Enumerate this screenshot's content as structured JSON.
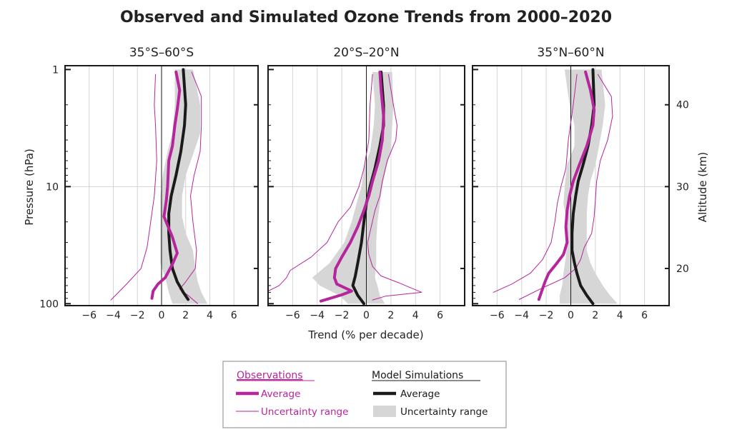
{
  "chart_data": {
    "type": "line",
    "title": "Observed and Simulated Ozone Trends from 2000–2020",
    "xlabel": "Trend (% per decade)",
    "ylabel_left": "Pressure  (hPa)",
    "ylabel_right": "Altitude  (km)",
    "x_ticks": [
      -6,
      -4,
      -2,
      0,
      2,
      4,
      6
    ],
    "x_tick_labels": [
      "−6",
      "−4",
      "−2",
      "0",
      "2",
      "4",
      "6"
    ],
    "xlim": [
      -8,
      8
    ],
    "y_scale": "log",
    "ylim": [
      100,
      1
    ],
    "y_ticks": [
      1,
      10,
      100
    ],
    "y_tick_labels": [
      "1",
      "10",
      "100"
    ],
    "alt_ticks": [
      {
        "p": 2,
        "label": "40"
      },
      {
        "p": 10,
        "label": "30"
      },
      {
        "p": 50,
        "label": "20"
      }
    ],
    "grid": true,
    "panels": [
      {
        "title": "35°S–60°S",
        "obs_avg": [
          [
            1.2,
            1.05
          ],
          [
            1.5,
            1.5
          ],
          [
            1.3,
            2.2
          ],
          [
            1.1,
            3
          ],
          [
            0.9,
            4.5
          ],
          [
            0.6,
            6
          ],
          [
            0.5,
            10
          ],
          [
            0.4,
            13
          ],
          [
            0.2,
            18
          ],
          [
            0.9,
            27
          ],
          [
            1.3,
            37
          ],
          [
            0.9,
            46
          ],
          [
            0.3,
            60
          ],
          [
            -0.3,
            68
          ],
          [
            -0.7,
            78
          ],
          [
            -0.8,
            90
          ]
        ],
        "obs_lower": [
          [
            -0.5,
            1.1
          ],
          [
            -0.6,
            2
          ],
          [
            -0.5,
            3
          ],
          [
            -0.4,
            6
          ],
          [
            -0.6,
            12
          ],
          [
            -0.9,
            20
          ],
          [
            -1.2,
            33
          ],
          [
            -1.7,
            50
          ],
          [
            -2.9,
            68
          ],
          [
            -4.2,
            93
          ]
        ],
        "obs_upper": [
          [
            2.5,
            1.05
          ],
          [
            3.3,
            1.7
          ],
          [
            3.3,
            3
          ],
          [
            3.2,
            5
          ],
          [
            2.7,
            8
          ],
          [
            2.4,
            12
          ],
          [
            2.6,
            20
          ],
          [
            2.9,
            35
          ],
          [
            2.8,
            50
          ],
          [
            2.0,
            65
          ],
          [
            1.5,
            75
          ],
          [
            2.2,
            85
          ],
          [
            3.0,
            100
          ]
        ],
        "model_avg": [
          [
            1.8,
            1.0
          ],
          [
            2.0,
            2
          ],
          [
            1.9,
            3
          ],
          [
            1.6,
            5
          ],
          [
            1.2,
            8
          ],
          [
            0.8,
            12
          ],
          [
            0.6,
            17
          ],
          [
            0.6,
            25
          ],
          [
            0.7,
            35
          ],
          [
            0.9,
            50
          ],
          [
            1.3,
            65
          ],
          [
            1.8,
            80
          ],
          [
            2.2,
            92
          ]
        ],
        "model_lower": [
          [
            1.1,
            1.0
          ],
          [
            1.1,
            2
          ],
          [
            0.9,
            3.5
          ],
          [
            0.5,
            5
          ],
          [
            0.1,
            8
          ],
          [
            -0.1,
            12
          ],
          [
            -0.1,
            20
          ],
          [
            -0.1,
            30
          ],
          [
            -0.1,
            45
          ],
          [
            0.3,
            60
          ],
          [
            0.6,
            80
          ],
          [
            0.9,
            100
          ]
        ],
        "model_upper": [
          [
            2.6,
            1.0
          ],
          [
            3.2,
            2
          ],
          [
            3.2,
            3.5
          ],
          [
            2.7,
            5
          ],
          [
            2.0,
            8
          ],
          [
            1.7,
            12
          ],
          [
            1.7,
            18
          ],
          [
            2.0,
            25
          ],
          [
            2.6,
            35
          ],
          [
            2.8,
            50
          ],
          [
            3.0,
            65
          ],
          [
            3.3,
            80
          ],
          [
            3.8,
            100
          ]
        ]
      },
      {
        "title": "20°S–20°N",
        "obs_avg": [
          [
            1.1,
            1.05
          ],
          [
            1.2,
            1.5
          ],
          [
            1.4,
            2.5
          ],
          [
            1.3,
            4
          ],
          [
            1.0,
            6
          ],
          [
            0.5,
            9
          ],
          [
            0.2,
            12
          ],
          [
            -0.2,
            16
          ],
          [
            -0.7,
            22
          ],
          [
            -1.3,
            30
          ],
          [
            -2.0,
            40
          ],
          [
            -2.5,
            50
          ],
          [
            -2.6,
            60
          ],
          [
            -2.4,
            68
          ],
          [
            -1.2,
            78
          ],
          [
            -2.0,
            84
          ],
          [
            -3.7,
            95
          ]
        ],
        "obs_lower": [
          [
            0.5,
            1.1
          ],
          [
            0.3,
            2
          ],
          [
            0.2,
            4
          ],
          [
            -0.2,
            7
          ],
          [
            -0.6,
            10
          ],
          [
            -1.3,
            15
          ],
          [
            -2.3,
            20
          ],
          [
            -3.2,
            30
          ],
          [
            -4.5,
            40
          ],
          [
            -6.2,
            52
          ],
          [
            -6.5,
            60
          ],
          [
            -7.1,
            70
          ],
          [
            -8.2,
            80
          ]
        ],
        "obs_upper": [
          [
            1.8,
            1.1
          ],
          [
            2.2,
            2
          ],
          [
            2.5,
            3
          ],
          [
            2.4,
            4
          ],
          [
            1.7,
            6
          ],
          [
            1.3,
            9
          ],
          [
            1.1,
            12
          ],
          [
            0.7,
            16
          ],
          [
            0.4,
            22
          ],
          [
            0.1,
            30
          ],
          [
            0.2,
            38
          ],
          [
            0.5,
            48
          ],
          [
            1.2,
            58
          ],
          [
            2.6,
            66
          ],
          [
            4.5,
            80
          ],
          [
            1.6,
            86
          ],
          [
            0.5,
            93
          ]
        ],
        "model_avg": [
          [
            1.2,
            1.05
          ],
          [
            1.4,
            2
          ],
          [
            1.4,
            3
          ],
          [
            1.1,
            4.5
          ],
          [
            0.7,
            7
          ],
          [
            0.3,
            10
          ],
          [
            0.0,
            14
          ],
          [
            -0.2,
            20
          ],
          [
            -0.4,
            30
          ],
          [
            -0.7,
            45
          ],
          [
            -0.9,
            58
          ],
          [
            -1.1,
            70
          ],
          [
            -0.7,
            85
          ],
          [
            -0.2,
            100
          ]
        ],
        "model_lower": [
          [
            0.5,
            1.05
          ],
          [
            0.7,
            2
          ],
          [
            0.6,
            3
          ],
          [
            0.3,
            5
          ],
          [
            -0.2,
            7
          ],
          [
            -0.4,
            10
          ],
          [
            -0.8,
            14
          ],
          [
            -1.2,
            20
          ],
          [
            -1.8,
            30
          ],
          [
            -3.0,
            45
          ],
          [
            -4.4,
            60
          ],
          [
            -3.8,
            70
          ],
          [
            -2.2,
            85
          ],
          [
            -1.5,
            100
          ]
        ],
        "model_upper": [
          [
            2.1,
            1.05
          ],
          [
            2.2,
            2
          ],
          [
            2.1,
            3
          ],
          [
            2.0,
            5
          ],
          [
            1.6,
            7
          ],
          [
            1.3,
            10
          ],
          [
            1.1,
            14
          ],
          [
            0.9,
            20
          ],
          [
            0.8,
            30
          ],
          [
            0.8,
            45
          ],
          [
            0.7,
            60
          ],
          [
            0.9,
            70
          ],
          [
            1.1,
            85
          ],
          [
            1.5,
            100
          ]
        ]
      },
      {
        "title": "35°N–60°N",
        "obs_avg": [
          [
            1.2,
            1.05
          ],
          [
            1.6,
            1.5
          ],
          [
            1.9,
            2.2
          ],
          [
            1.8,
            3
          ],
          [
            1.3,
            4.5
          ],
          [
            0.7,
            6.5
          ],
          [
            0.2,
            9
          ],
          [
            -0.1,
            12
          ],
          [
            -0.3,
            16
          ],
          [
            -0.4,
            22
          ],
          [
            -0.3,
            30
          ],
          [
            -0.6,
            38
          ],
          [
            -1.2,
            46
          ],
          [
            -1.8,
            55
          ],
          [
            -2.1,
            65
          ],
          [
            -2.4,
            80
          ],
          [
            -2.6,
            92
          ]
        ],
        "obs_lower": [
          [
            0.5,
            1.1
          ],
          [
            0.2,
            2
          ],
          [
            -0.2,
            4
          ],
          [
            -0.4,
            7
          ],
          [
            -0.8,
            10
          ],
          [
            -1.1,
            14
          ],
          [
            -1.3,
            20
          ],
          [
            -1.6,
            30
          ],
          [
            -2.3,
            42
          ],
          [
            -3.3,
            55
          ],
          [
            -4.8,
            68
          ],
          [
            -6.3,
            80
          ]
        ],
        "obs_upper": [
          [
            2.2,
            1.1
          ],
          [
            3.3,
            1.7
          ],
          [
            3.4,
            2.5
          ],
          [
            3.0,
            4
          ],
          [
            2.4,
            6
          ],
          [
            2.1,
            9
          ],
          [
            2.0,
            13
          ],
          [
            1.9,
            18
          ],
          [
            1.7,
            25
          ],
          [
            1.1,
            33
          ],
          [
            0.8,
            42
          ],
          [
            0.4,
            50
          ],
          [
            -0.5,
            60
          ],
          [
            -2.5,
            75
          ],
          [
            -4.2,
            92
          ]
        ],
        "model_avg": [
          [
            1.8,
            1.0
          ],
          [
            1.9,
            2
          ],
          [
            1.7,
            3
          ],
          [
            1.4,
            4.5
          ],
          [
            1.0,
            6.5
          ],
          [
            0.6,
            9
          ],
          [
            0.4,
            12
          ],
          [
            0.2,
            17
          ],
          [
            0.1,
            25
          ],
          [
            0.1,
            35
          ],
          [
            0.3,
            45
          ],
          [
            0.5,
            55
          ],
          [
            0.8,
            70
          ],
          [
            1.3,
            85
          ],
          [
            1.8,
            100
          ]
        ],
        "model_lower": [
          [
            -0.5,
            1.0
          ],
          [
            -0.1,
            2
          ],
          [
            0.3,
            3
          ],
          [
            0.3,
            4.5
          ],
          [
            -0.3,
            6.5
          ],
          [
            -0.5,
            10
          ],
          [
            -0.6,
            14
          ],
          [
            -0.3,
            20
          ],
          [
            -0.3,
            30
          ],
          [
            -0.4,
            40
          ],
          [
            -0.6,
            55
          ],
          [
            -0.7,
            70
          ],
          [
            -0.9,
            85
          ],
          [
            -0.9,
            100
          ]
        ],
        "model_upper": [
          [
            2.5,
            1.0
          ],
          [
            2.8,
            2
          ],
          [
            2.6,
            3
          ],
          [
            2.3,
            4.5
          ],
          [
            2.0,
            6.5
          ],
          [
            1.6,
            9
          ],
          [
            1.4,
            12
          ],
          [
            1.3,
            17
          ],
          [
            1.3,
            25
          ],
          [
            1.3,
            35
          ],
          [
            1.6,
            45
          ],
          [
            2.0,
            55
          ],
          [
            2.6,
            70
          ],
          [
            3.2,
            85
          ],
          [
            3.8,
            100
          ]
        ]
      }
    ],
    "colors": {
      "observations": "#b5269c",
      "model": "#1a1a1a",
      "model_band": "#d6d6d6",
      "grid": "#d4d4d4",
      "frame": "#1a1a1a"
    },
    "legend": {
      "placement": "bottom-center",
      "observations_heading": "Observations",
      "model_heading": "Model Simulations",
      "obs_average": "Average",
      "obs_range": "Uncertainty range",
      "model_average": "Average",
      "model_range": "Uncertainty range"
    }
  }
}
